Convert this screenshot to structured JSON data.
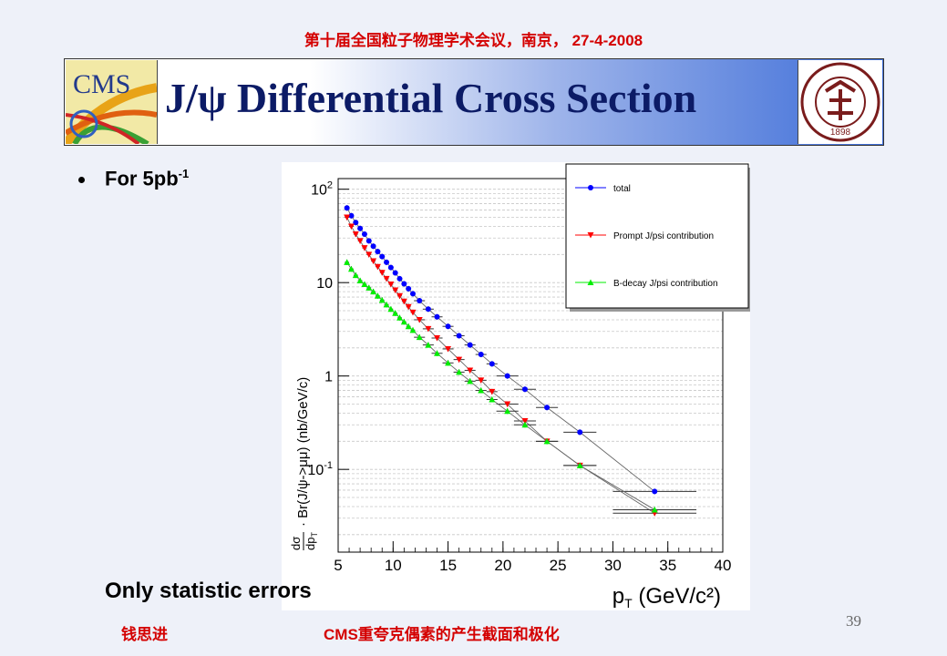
{
  "header": {
    "conference": "第十届全国粒子物理学术会议，南京， 27-4-2008"
  },
  "banner": {
    "title": "J/ψ Differential Cross Section",
    "left_logo": "CMS",
    "right_logo_year": "1898"
  },
  "bullet": {
    "text": "For 5pb",
    "superscript": "-1"
  },
  "note": "Only statistic errors",
  "footer": {
    "author": "钱思进",
    "topic": "CMS重夸克偶素的产生截面和极化",
    "page": "39"
  },
  "chart_data": {
    "type": "scatter",
    "xlabel_main": "p",
    "xlabel_sub": "T",
    "xlabel_unit": "(GeV/c²)",
    "ylabel_frac_num": "dσ",
    "ylabel_frac_den": "dp",
    "ylabel_frac_den_sub": "T",
    "ylabel_rest": "· Br(J/ψ->μμ) (nb/GeV/c)",
    "xlim": [
      5,
      40
    ],
    "ylim": [
      0.013,
      130
    ],
    "yscale": "log",
    "x_ticks": [
      5,
      10,
      15,
      20,
      25,
      30,
      35,
      40
    ],
    "y_ticks": [
      {
        "value": 100,
        "base": "10",
        "exp": "2"
      },
      {
        "value": 10,
        "base": "10",
        "exp": ""
      },
      {
        "value": 1,
        "base": "1",
        "exp": ""
      },
      {
        "value": 0.1,
        "base": "10",
        "exp": "-1"
      }
    ],
    "grid": true,
    "legend_position": "top-right",
    "series": [
      {
        "name": "total",
        "color": "#0000ff",
        "marker": "circle",
        "x": [
          5.8,
          6.2,
          6.6,
          7.0,
          7.4,
          7.8,
          8.2,
          8.6,
          9.0,
          9.4,
          9.8,
          10.2,
          10.6,
          11.0,
          11.4,
          11.8,
          12.4,
          13.2,
          14.0,
          15.0,
          16.0,
          17.0,
          18.0,
          19.0,
          20.4,
          22.0,
          24.0,
          27.0,
          33.8
        ],
        "y": [
          63,
          52,
          44,
          38,
          33,
          28,
          24.5,
          21.5,
          19,
          16.5,
          14.5,
          12.7,
          11,
          9.7,
          8.6,
          7.6,
          6.4,
          5.2,
          4.3,
          3.4,
          2.7,
          2.15,
          1.7,
          1.35,
          1.0,
          0.72,
          0.46,
          0.25,
          0.058
        ]
      },
      {
        "name": "Prompt J/psi contribution",
        "color": "#ff0000",
        "marker": "triangle-down",
        "x": [
          5.8,
          6.2,
          6.6,
          7.0,
          7.4,
          7.8,
          8.2,
          8.6,
          9.0,
          9.4,
          9.8,
          10.2,
          10.6,
          11.0,
          11.4,
          11.8,
          12.4,
          13.2,
          14.0,
          15.0,
          16.0,
          17.0,
          18.0,
          19.0,
          20.4,
          22.0,
          24.0,
          27.0,
          33.8
        ],
        "y": [
          50,
          40,
          33,
          28,
          23.5,
          20,
          17,
          14.8,
          12.8,
          11,
          9.6,
          8.3,
          7.2,
          6.3,
          5.5,
          4.8,
          4.0,
          3.2,
          2.55,
          1.95,
          1.5,
          1.15,
          0.9,
          0.68,
          0.5,
          0.33,
          0.2,
          0.11,
          0.034
        ]
      },
      {
        "name": "B-decay J/psi contribution",
        "color": "#00ee00",
        "marker": "triangle-up",
        "x": [
          5.8,
          6.2,
          6.6,
          7.0,
          7.4,
          7.8,
          8.2,
          8.6,
          9.0,
          9.4,
          9.8,
          10.2,
          10.6,
          11.0,
          11.4,
          11.8,
          12.4,
          13.2,
          14.0,
          15.0,
          16.0,
          17.0,
          18.0,
          19.0,
          20.4,
          22.0,
          24.0,
          27.0,
          33.8
        ],
        "y": [
          16.5,
          14,
          12,
          10.5,
          9.6,
          8.8,
          8.0,
          7.2,
          6.5,
          5.8,
          5.2,
          4.7,
          4.2,
          3.8,
          3.4,
          3.1,
          2.6,
          2.15,
          1.75,
          1.38,
          1.1,
          0.88,
          0.7,
          0.56,
          0.42,
          0.3,
          0.2,
          0.11,
          0.037
        ]
      }
    ]
  }
}
